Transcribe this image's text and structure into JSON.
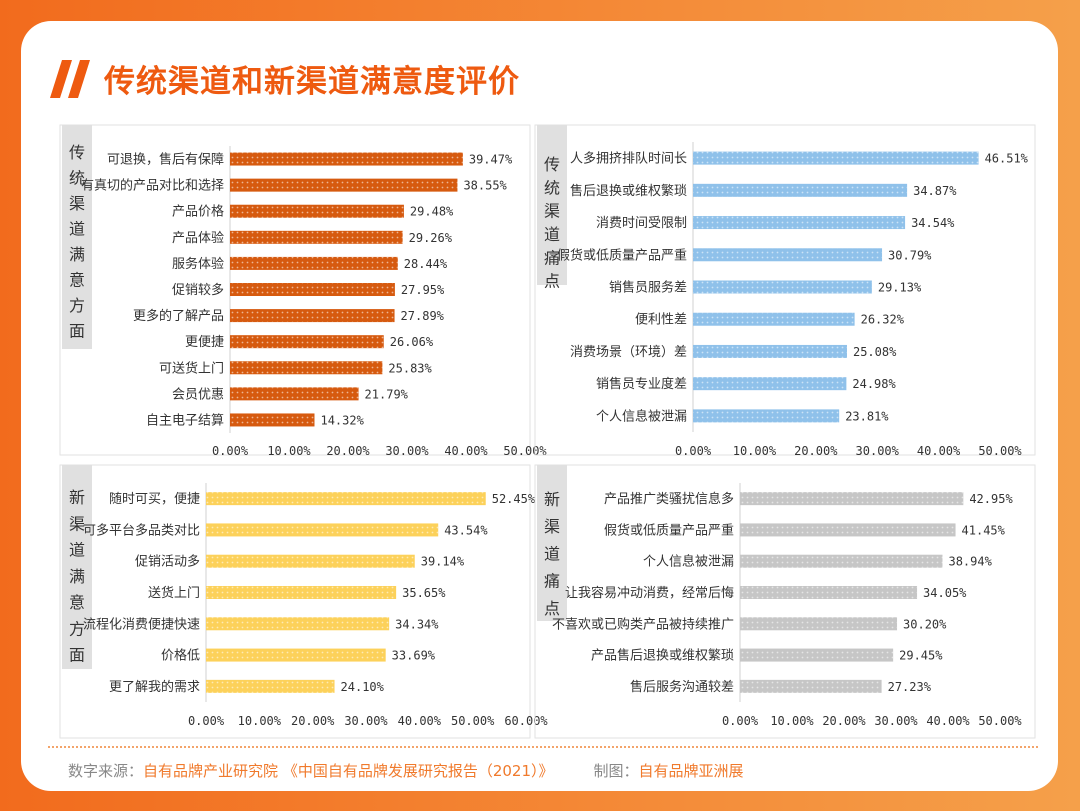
{
  "title": "传统渠道和新渠道满意度评价",
  "footer": {
    "source_label": "数字来源：",
    "source_org": "自有品牌产业研究院",
    "source_report": "《中国自有品牌发展研究报告（2021）》",
    "maker_label": "制图：",
    "maker_org": "自有品牌亚洲展"
  },
  "chart_data": [
    {
      "type": "bar",
      "orientation": "horizontal",
      "side_label": "传统渠道满意方面",
      "color": "#d65a0f",
      "categories": [
        "可退换，售后有保障",
        "有真切的产品对比和选择",
        "产品价格",
        "产品体验",
        "服务体验",
        "促销较多",
        "更多的了解产品",
        "更便捷",
        "可送货上门",
        "会员优惠",
        "自主电子结算"
      ],
      "values": [
        39.47,
        38.55,
        29.48,
        29.26,
        28.44,
        27.95,
        27.89,
        26.06,
        25.83,
        21.79,
        14.32
      ],
      "value_labels": [
        "39.47%",
        "38.55%",
        "29.48%",
        "29.26%",
        "28.44%",
        "27.95%",
        "27.89%",
        "26.06%",
        "25.83%",
        "21.79%",
        "14.32%"
      ],
      "xlim": [
        0,
        50
      ],
      "ticks": [
        "0.00%",
        "10.00%",
        "20.00%",
        "30.00%",
        "40.00%",
        "50.00%"
      ]
    },
    {
      "type": "bar",
      "orientation": "horizontal",
      "side_label": "传统渠道痛点",
      "color": "#8fc1ea",
      "categories": [
        "人多拥挤排队时间长",
        "售后退换或维权繁琐",
        "消费时间受限制",
        "假货或低质量产品严重",
        "销售员服务差",
        "便利性差",
        "消费场景（环境）差",
        "销售员专业度差",
        "个人信息被泄漏"
      ],
      "values": [
        46.51,
        34.87,
        34.54,
        30.79,
        29.13,
        26.32,
        25.08,
        24.98,
        23.81
      ],
      "value_labels": [
        "46.51%",
        "34.87%",
        "34.54%",
        "30.79%",
        "29.13%",
        "26.32%",
        "25.08%",
        "24.98%",
        "23.81%"
      ],
      "xlim": [
        0,
        50
      ],
      "ticks": [
        "0.00%",
        "10.00%",
        "20.00%",
        "30.00%",
        "40.00%",
        "50.00%"
      ]
    },
    {
      "type": "bar",
      "orientation": "horizontal",
      "side_label": "新渠道满意方面",
      "color": "#fcd15a",
      "categories": [
        "随时可买，便捷",
        "可多平台多品类对比",
        "促销活动多",
        "送货上门",
        "流程化消费便捷快速",
        "价格低",
        "更了解我的需求"
      ],
      "values": [
        52.45,
        43.54,
        39.14,
        35.65,
        34.34,
        33.69,
        24.1
      ],
      "value_labels": [
        "52.45%",
        "43.54%",
        "39.14%",
        "35.65%",
        "34.34%",
        "33.69%",
        "24.10%"
      ],
      "xlim": [
        0,
        60
      ],
      "ticks": [
        "0.00%",
        "10.00%",
        "20.00%",
        "30.00%",
        "40.00%",
        "50.00%",
        "60.00%"
      ]
    },
    {
      "type": "bar",
      "orientation": "horizontal",
      "side_label": "新渠道痛点",
      "color": "#c6c6c6",
      "categories": [
        "产品推广类骚扰信息多",
        "假货或低质量产品严重",
        "个人信息被泄漏",
        "让我容易冲动消费，经常后悔",
        "不喜欢或已购类产品被持续推广",
        "产品售后退换或维权繁琐",
        "售后服务沟通较差"
      ],
      "values": [
        42.95,
        41.45,
        38.94,
        34.05,
        30.2,
        29.45,
        27.23
      ],
      "value_labels": [
        "42.95%",
        "41.45%",
        "38.94%",
        "34.05%",
        "30.20%",
        "29.45%",
        "27.23%"
      ],
      "xlim": [
        0,
        50
      ],
      "ticks": [
        "0.00%",
        "10.00%",
        "20.00%",
        "30.00%",
        "40.00%",
        "50.00%"
      ]
    }
  ]
}
